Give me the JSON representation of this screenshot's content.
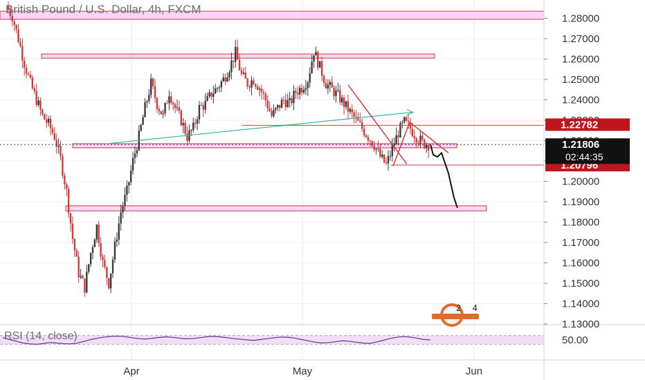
{
  "chart_data": {
    "type": "candlestick",
    "title": "British Pound / U.S. Dollar, 4h, FXCM",
    "y_range": [
      1.132,
      1.2885
    ],
    "y_ticks": [
      "1.28000",
      "1.27000",
      "1.26000",
      "1.25000",
      "1.24000",
      "1.23000",
      "1.22000",
      "1.21000",
      "1.20000",
      "1.19000",
      "1.18000",
      "1.17000",
      "1.16000",
      "1.15000",
      "1.14000",
      "1.13000"
    ],
    "x_labels": [
      "Apr",
      "May",
      "Jun"
    ],
    "current_price": "1.21806",
    "countdown": "02:44:35",
    "price_labels": [
      {
        "value": "1.22782",
        "price": 1.22782
      },
      {
        "value": "1.20796",
        "price": 1.20796
      }
    ],
    "zones": [
      {
        "from": 1.2795,
        "to": 1.2835
      },
      {
        "from": 1.2605,
        "to": 1.2625
      },
      {
        "from": 1.2165,
        "to": 1.2185
      },
      {
        "from": 1.1855,
        "to": 1.188
      }
    ],
    "price_path": [
      1.286,
      1.281,
      1.27,
      1.258,
      1.248,
      1.24,
      1.232,
      1.228,
      1.222,
      1.211,
      1.195,
      1.172,
      1.155,
      1.148,
      1.165,
      1.178,
      1.16,
      1.15,
      1.168,
      1.185,
      1.195,
      1.21,
      1.222,
      1.236,
      1.248,
      1.238,
      1.232,
      1.244,
      1.236,
      1.23,
      1.222,
      1.226,
      1.236,
      1.238,
      1.243,
      1.246,
      1.25,
      1.256,
      1.263,
      1.252,
      1.248,
      1.25,
      1.246,
      1.24,
      1.232,
      1.236,
      1.24,
      1.238,
      1.244,
      1.246,
      1.25,
      1.264,
      1.256,
      1.248,
      1.245,
      1.242,
      1.238,
      1.234,
      1.23,
      1.226,
      1.222,
      1.218,
      1.212,
      1.208,
      1.216,
      1.224,
      1.229,
      1.226,
      1.222,
      1.219,
      1.2181
    ],
    "projection": [
      1.2181,
      1.213,
      1.212,
      1.214,
      1.21,
      1.204,
      1.198,
      1.192,
      1.187
    ],
    "rsi": {
      "label": "RSI (14, close)",
      "tick": "50.00",
      "range": [
        0,
        100
      ],
      "bands": [
        30,
        70
      ],
      "values": [
        60,
        52,
        44,
        36,
        32,
        30,
        34,
        38,
        36,
        33,
        32,
        36,
        44,
        52,
        58,
        63,
        66,
        67,
        65,
        60,
        56,
        54,
        57,
        61,
        64,
        62,
        58,
        55,
        56,
        60,
        64,
        66,
        64,
        60,
        56,
        53,
        50,
        48,
        52,
        56,
        60,
        63,
        62,
        58,
        52,
        46,
        40,
        36,
        38,
        42,
        46,
        44,
        40,
        36,
        34,
        40,
        48,
        56,
        62,
        65,
        63,
        58,
        52,
        50
      ]
    },
    "grid": true,
    "legend": "none"
  },
  "watermark": {
    "text": "2 4"
  },
  "colors": {
    "up": "#3a3a3a",
    "down": "#d23a3a",
    "zone_fill": "#f2c9f7",
    "zone_stroke": "#d23a3a",
    "trend": "#d23a3a",
    "channel": "#3bb3a6",
    "label_bg": "#c0151f",
    "current_bg": "#111111",
    "rsi_line": "#6a2e8a",
    "rsi_band": "#f1ddf5"
  }
}
